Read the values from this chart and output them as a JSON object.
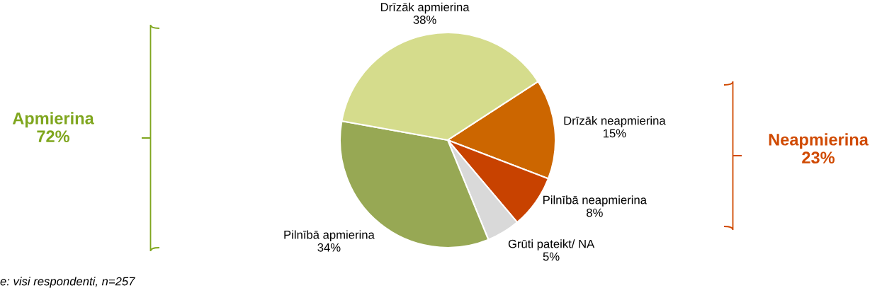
{
  "chart_data": {
    "type": "pie",
    "categories": [
      "Drīzāk neapmierina",
      "Pilnībā neapmierina",
      "Grūti pateikt/ NA",
      "Pilnībā apmierina",
      "Drīzāk apmierina"
    ],
    "values": [
      15,
      8,
      5,
      34,
      38
    ],
    "value_labels": [
      "15%",
      "8%",
      "5%",
      "34%",
      "38%"
    ],
    "colors": [
      "#cc6600",
      "#c84200",
      "#d9d9d9",
      "#97a854",
      "#d5dc8c"
    ],
    "annotations": [
      "Apmierina\n72%",
      "Neapmierina\n23%",
      "e: visi respondenti, n=257"
    ],
    "legend": false
  }
}
